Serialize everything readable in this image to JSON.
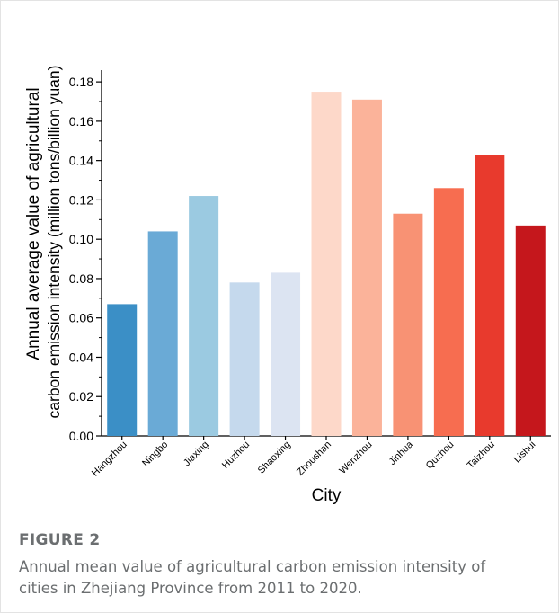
{
  "chart_data": {
    "type": "bar",
    "categories": [
      "Hangzhou",
      "Ningbo",
      "Jiaxing",
      "Huzhou",
      "Shaoxing",
      "Zhoushan",
      "Wenzhou",
      "Jinhua",
      "Quzhou",
      "Taizhou",
      "Lishui"
    ],
    "values": [
      0.067,
      0.104,
      0.122,
      0.078,
      0.083,
      0.175,
      0.171,
      0.113,
      0.126,
      0.143,
      0.107
    ],
    "colors": [
      "#3b8fc6",
      "#6aaad6",
      "#9bcae1",
      "#c5d9ed",
      "#dce4f2",
      "#fdd8c9",
      "#fbb39a",
      "#f89274",
      "#f76d50",
      "#e83a2d",
      "#c5171c"
    ],
    "xlabel": "City",
    "ylabel_line1": "Annual average value of agricultural",
    "ylabel_line2": "carbon emission intensity (million tons/billion yuan)",
    "ylim": [
      0,
      0.18
    ],
    "yticks": [
      "0.00",
      "0.02",
      "0.04",
      "0.06",
      "0.08",
      "0.10",
      "0.12",
      "0.14",
      "0.16",
      "0.18"
    ],
    "grid": false
  },
  "figure": {
    "label": "FIGURE 2",
    "caption": "Annual mean value of agricultural carbon emission intensity of cities in Zhejiang Province from 2011 to 2020."
  }
}
